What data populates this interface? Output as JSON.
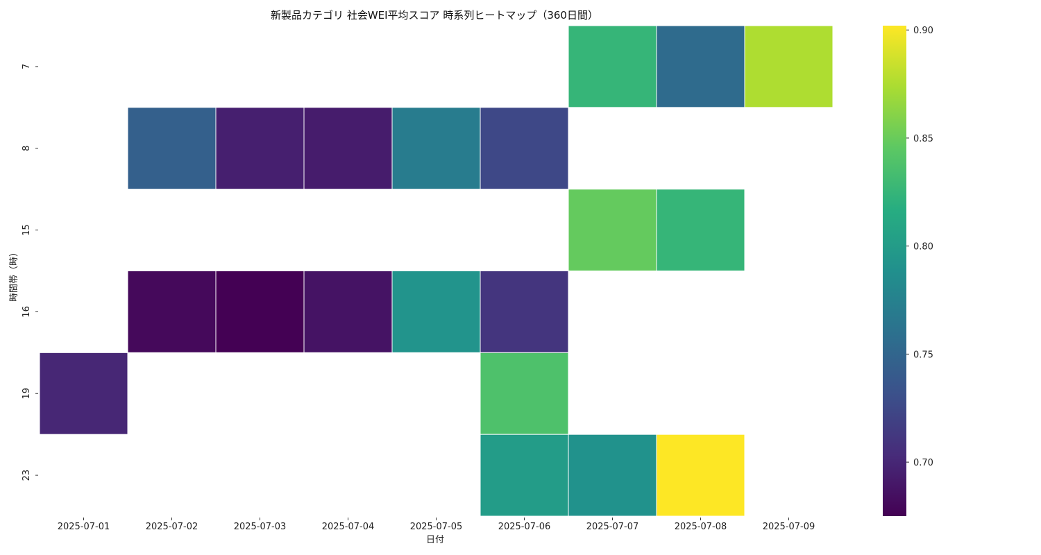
{
  "chart_data": {
    "type": "heatmap",
    "title": "新製品カテゴリ 社会WEI平均スコア 時系列ヒートマップ（360日間）",
    "xlabel": "日付",
    "ylabel": "時間帯（時）",
    "x_categories": [
      "2025-07-01",
      "2025-07-02",
      "2025-07-03",
      "2025-07-04",
      "2025-07-05",
      "2025-07-06",
      "2025-07-07",
      "2025-07-08",
      "2025-07-09"
    ],
    "y_categories": [
      "7",
      "8",
      "15",
      "16",
      "19",
      "23"
    ],
    "values": [
      [
        null,
        null,
        null,
        null,
        null,
        null,
        0.825,
        0.755,
        0.875
      ],
      [
        null,
        0.745,
        0.695,
        0.693,
        0.77,
        0.725,
        null,
        null,
        null
      ],
      [
        null,
        null,
        null,
        null,
        null,
        null,
        0.848,
        0.825,
        null
      ],
      [
        null,
        0.68,
        0.675,
        0.687,
        0.792,
        0.71,
        null,
        null,
        null
      ],
      [
        0.7,
        null,
        null,
        null,
        null,
        0.838,
        null,
        null,
        null
      ],
      [
        null,
        null,
        null,
        null,
        null,
        0.8,
        0.79,
        0.902,
        null
      ]
    ],
    "colormap": "viridis",
    "colorbar": {
      "vmin": 0.675,
      "vmax": 0.902,
      "ticks": [
        0.7,
        0.75,
        0.8,
        0.85,
        0.9
      ],
      "tick_labels": [
        "0.70",
        "0.75",
        "0.80",
        "0.85",
        "0.90"
      ]
    },
    "grid": false
  }
}
